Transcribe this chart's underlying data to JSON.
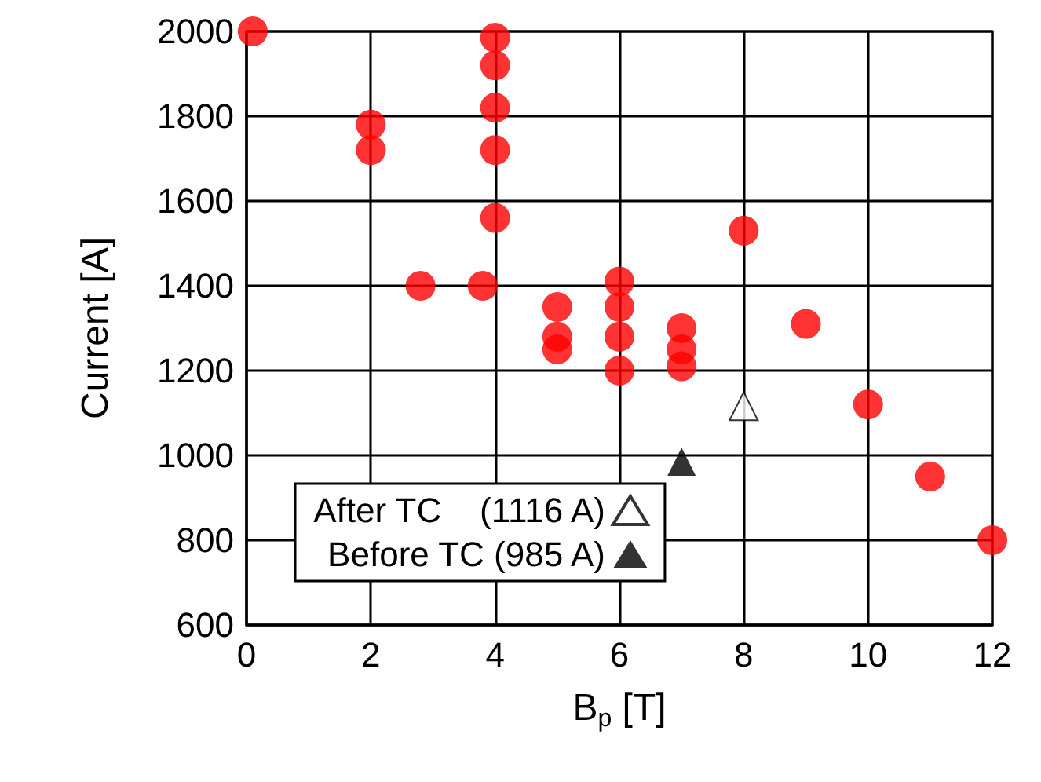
{
  "chart_data": {
    "type": "scatter",
    "xlabel": "B$_{p}$ [T]",
    "ylabel": "Current [A]",
    "xlim": [
      0,
      12
    ],
    "xticks": [
      0,
      2,
      4,
      6,
      8,
      10,
      12
    ],
    "ylim": [
      600,
      2000
    ],
    "yticks": [
      600,
      800,
      1000,
      1200,
      1400,
      1600,
      1800,
      2000
    ],
    "grid": true,
    "legend": "bottom",
    "marker": "circle",
    "series": [
      {
        "color": "#ff0000",
        "x": [
          0.1,
          2,
          2,
          2.8,
          3.8,
          4,
          4,
          4,
          4,
          4,
          5,
          5,
          5,
          6,
          6,
          6,
          6,
          7,
          7,
          7,
          8,
          9,
          10,
          11,
          12
        ],
        "values": [
          2000,
          1780,
          1720,
          1400,
          1400,
          1985,
          1920,
          1820,
          1720,
          1560,
          1350,
          1280,
          1250,
          1410,
          1350,
          1280,
          1200,
          1300,
          1250,
          1210,
          1530,
          1310,
          1120,
          950,
          800
        ]
      },
      {
        "name": "After TC    (1116 A)",
        "color": "#000000",
        "marker": "triangle-open",
        "x": [
          8
        ],
        "values": [
          1116
        ]
      },
      {
        "name": "Before TC (985 A)",
        "color": "#000000",
        "marker": "triangle",
        "x": [
          7
        ],
        "values": [
          985
        ]
      }
    ]
  }
}
